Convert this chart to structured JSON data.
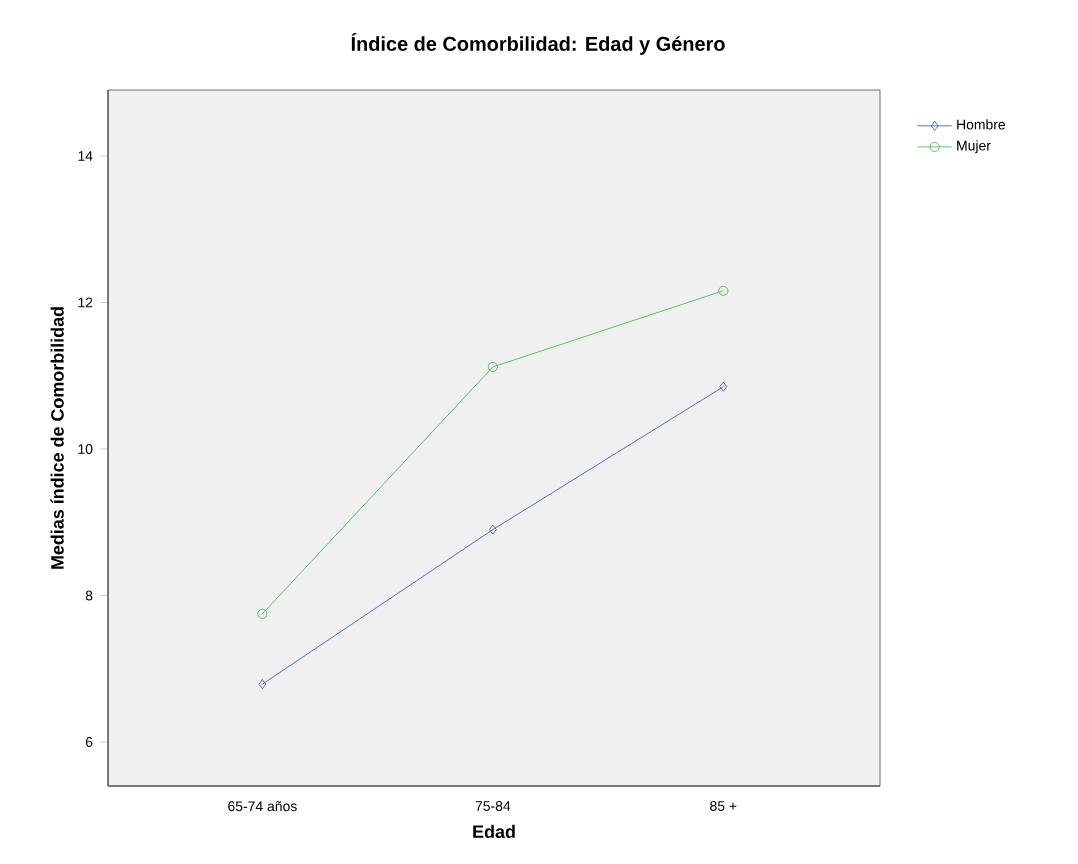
{
  "chart_data": {
    "type": "line",
    "title": "Índice de Comorbilidad: Edad y Género",
    "xlabel": "Edad",
    "ylabel": "Medias índice de Comorbilidad",
    "categories": [
      "65-74 años",
      "75-84",
      "85 +"
    ],
    "series": [
      {
        "name": "Hombre",
        "color": "#3a4fa8",
        "marker": "diamond",
        "values": [
          6.79,
          8.9,
          10.85
        ]
      },
      {
        "name": "Mujer",
        "color": "#33b84a",
        "marker": "circle",
        "values": [
          7.75,
          11.12,
          12.16
        ]
      }
    ],
    "ylim": [
      5.4,
      14.9
    ],
    "yticks": [
      6,
      8,
      10,
      12,
      14
    ],
    "grid": false,
    "legend": "top right",
    "line_style": "solid"
  }
}
